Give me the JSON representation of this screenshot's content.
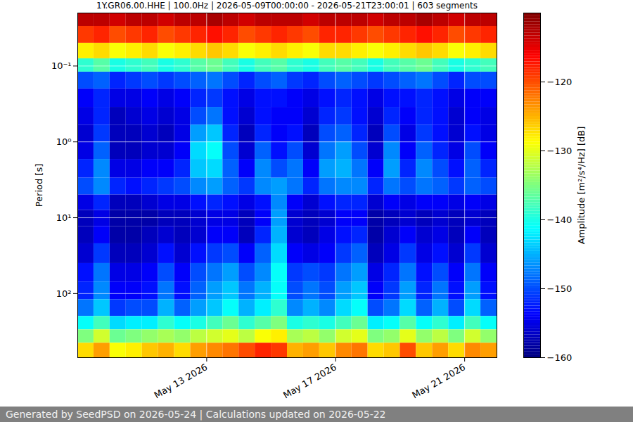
{
  "chart_data": {
    "type": "heatmap",
    "title": "1Y.GR06.00.HHE | 100.0Hz | 2026-05-09T00:00:00 - 2026-05-21T23:00:01 | 603 segments",
    "footer": "Generated by SeedPSD on 2026-05-24 | Calculations updated on 2026-05-22",
    "ylabel": "Period [s]",
    "colorbar_label": "Amplitude [m²/s⁴/Hz] [dB]",
    "log": "y",
    "grid": true,
    "x": [
      "2026-05-09T00:00Z",
      "2026-05-09T12:00Z",
      "2026-05-10T00:00Z",
      "2026-05-10T12:00Z",
      "2026-05-11T00:00Z",
      "2026-05-11T12:00Z",
      "2026-05-12T00:00Z",
      "2026-05-12T12:00Z",
      "2026-05-13T00:00Z",
      "2026-05-13T12:00Z",
      "2026-05-14T00:00Z",
      "2026-05-14T12:00Z",
      "2026-05-15T00:00Z",
      "2026-05-15T12:00Z",
      "2026-05-16T00:00Z",
      "2026-05-16T12:00Z",
      "2026-05-17T00:00Z",
      "2026-05-17T12:00Z",
      "2026-05-18T00:00Z",
      "2026-05-18T12:00Z",
      "2026-05-19T00:00Z",
      "2026-05-19T12:00Z",
      "2026-05-20T00:00Z",
      "2026-05-20T12:00Z",
      "2026-05-21T00:00Z",
      "2026-05-21T12:00Z"
    ],
    "xlim": [
      "2026-05-09T00:00Z",
      "2026-05-22T00:00Z"
    ],
    "xticks": [
      {
        "value": "2026-05-13T00:00Z",
        "label": "May 13 2026"
      },
      {
        "value": "2026-05-17T00:00Z",
        "label": "May 17 2026"
      },
      {
        "value": "2026-05-21T00:00Z",
        "label": "May 21 2026"
      }
    ],
    "period_edges": [
      0.02,
      0.03,
      0.05,
      0.08,
      0.12,
      0.2,
      0.35,
      0.6,
      1,
      1.7,
      3,
      5,
      8,
      13,
      22,
      40,
      70,
      120,
      200,
      300,
      450,
      700
    ],
    "ylim": [
      0.02,
      700
    ],
    "yticks": [
      {
        "value": 0.1,
        "label": "10⁻¹"
      },
      {
        "value": 1,
        "label": "10⁰"
      },
      {
        "value": 10,
        "label": "10¹"
      },
      {
        "value": 100,
        "label": "10²"
      }
    ],
    "cells": [
      [
        -113,
        -113,
        -114,
        -113,
        -113,
        -114,
        -113,
        -113,
        -112,
        -113,
        -114,
        -113,
        -113,
        -113,
        -114,
        -113,
        -113,
        -113,
        -114,
        -113,
        -113,
        -112,
        -113,
        -114,
        -113,
        -113
      ],
      [
        -119,
        -118,
        -120,
        -119,
        -118,
        -120,
        -119,
        -118,
        -117,
        -118,
        -120,
        -119,
        -118,
        -119,
        -120,
        -118,
        -118,
        -119,
        -120,
        -119,
        -118,
        -117,
        -118,
        -120,
        -119,
        -118
      ],
      [
        -128,
        -127,
        -129,
        -128,
        -127,
        -129,
        -128,
        -127,
        -126,
        -127,
        -129,
        -128,
        -127,
        -128,
        -129,
        -127,
        -127,
        -128,
        -129,
        -128,
        -127,
        -126,
        -127,
        -129,
        -128,
        -127
      ],
      [
        -139,
        -137,
        -140,
        -139,
        -138,
        -140,
        -139,
        -137,
        -136,
        -138,
        -140,
        -138,
        -137,
        -139,
        -140,
        -138,
        -137,
        -138,
        -140,
        -138,
        -137,
        -136,
        -138,
        -140,
        -139,
        -138
      ],
      [
        -150,
        -149,
        -152,
        -151,
        -150,
        -151,
        -150,
        -149,
        -148,
        -150,
        -152,
        -150,
        -149,
        -151,
        -152,
        -150,
        -149,
        -150,
        -151,
        -150,
        -149,
        -148,
        -150,
        -152,
        -150,
        -150
      ],
      [
        -154,
        -152,
        -155,
        -155,
        -154,
        -155,
        -154,
        -152,
        -151,
        -153,
        -155,
        -153,
        -153,
        -154,
        -155,
        -153,
        -152,
        -153,
        -155,
        -153,
        -153,
        -152,
        -153,
        -155,
        -154,
        -154
      ],
      [
        -155,
        -152,
        -157,
        -156,
        -155,
        -156,
        -155,
        -150,
        -148,
        -153,
        -156,
        -153,
        -154,
        -154,
        -156,
        -152,
        -151,
        -153,
        -156,
        -152,
        -154,
        -152,
        -153,
        -156,
        -154,
        -155
      ],
      [
        -156,
        -151,
        -157,
        -157,
        -156,
        -157,
        -155,
        -146,
        -144,
        -152,
        -157,
        -152,
        -154,
        -153,
        -157,
        -150,
        -149,
        -152,
        -157,
        -150,
        -155,
        -151,
        -153,
        -156,
        -153,
        -155
      ],
      [
        -155,
        -149,
        -157,
        -157,
        -156,
        -156,
        -154,
        -143,
        -141,
        -150,
        -156,
        -149,
        -153,
        -150,
        -156,
        -148,
        -146,
        -150,
        -156,
        -147,
        -154,
        -149,
        -152,
        -155,
        -150,
        -154
      ],
      [
        -152,
        -147,
        -155,
        -155,
        -154,
        -154,
        -152,
        -144,
        -143,
        -149,
        -154,
        -147,
        -150,
        -148,
        -154,
        -146,
        -145,
        -148,
        -154,
        -146,
        -152,
        -147,
        -150,
        -153,
        -149,
        -152
      ],
      [
        -150,
        -147,
        -152,
        -153,
        -152,
        -151,
        -150,
        -147,
        -146,
        -149,
        -151,
        -147,
        -146,
        -148,
        -152,
        -148,
        -147,
        -147,
        -152,
        -148,
        -150,
        -148,
        -149,
        -151,
        -149,
        -150
      ],
      [
        -155,
        -152,
        -157,
        -157,
        -156,
        -155,
        -155,
        -153,
        -152,
        -153,
        -155,
        -153,
        -147,
        -154,
        -156,
        -153,
        -152,
        -152,
        -156,
        -154,
        -155,
        -154,
        -154,
        -155,
        -154,
        -155
      ],
      [
        -157,
        -155,
        -158,
        -158,
        -158,
        -157,
        -157,
        -156,
        -155,
        -155,
        -157,
        -154,
        -146,
        -156,
        -157,
        -156,
        -154,
        -154,
        -158,
        -157,
        -156,
        -157,
        -156,
        -157,
        -156,
        -157
      ],
      [
        -157,
        -154,
        -158,
        -158,
        -157,
        -156,
        -157,
        -156,
        -154,
        -154,
        -157,
        -152,
        -145,
        -156,
        -157,
        -155,
        -153,
        -152,
        -158,
        -156,
        -154,
        -156,
        -155,
        -157,
        -154,
        -157
      ],
      [
        -156,
        -151,
        -157,
        -157,
        -156,
        -153,
        -156,
        -153,
        -151,
        -150,
        -154,
        -149,
        -143,
        -154,
        -155,
        -154,
        -151,
        -149,
        -157,
        -155,
        -151,
        -155,
        -153,
        -156,
        -151,
        -156
      ],
      [
        -153,
        -148,
        -155,
        -155,
        -154,
        -150,
        -154,
        -150,
        -148,
        -146,
        -150,
        -147,
        -141,
        -151,
        -150,
        -151,
        -148,
        -146,
        -155,
        -152,
        -148,
        -153,
        -150,
        -154,
        -148,
        -154
      ],
      [
        -152,
        -147,
        -154,
        -154,
        -153,
        -148,
        -153,
        -149,
        -146,
        -144,
        -148,
        -145,
        -141,
        -150,
        -148,
        -150,
        -146,
        -144,
        -154,
        -151,
        -146,
        -152,
        -148,
        -153,
        -146,
        -153
      ],
      [
        -148,
        -144,
        -151,
        -150,
        -150,
        -145,
        -149,
        -146,
        -144,
        -141,
        -145,
        -142,
        -139,
        -147,
        -145,
        -147,
        -143,
        -141,
        -150,
        -148,
        -143,
        -149,
        -145,
        -150,
        -143,
        -149
      ],
      [
        -141,
        -138,
        -143,
        -142,
        -142,
        -139,
        -141,
        -140,
        -138,
        -136,
        -139,
        -137,
        -135,
        -140,
        -139,
        -140,
        -138,
        -136,
        -142,
        -141,
        -137,
        -141,
        -139,
        -142,
        -138,
        -141
      ],
      [
        -135,
        -131,
        -136,
        -135,
        -134,
        -133,
        -134,
        -132,
        -131,
        -130,
        -132,
        -129,
        -128,
        -133,
        -132,
        -134,
        -131,
        -130,
        -135,
        -134,
        -130,
        -134,
        -132,
        -135,
        -131,
        -134
      ],
      [
        -127,
        -124,
        -129,
        -128,
        -126,
        -125,
        -127,
        -124,
        -123,
        -122,
        -120,
        -118,
        -119,
        -125,
        -124,
        -126,
        -123,
        -122,
        -127,
        -126,
        -120,
        -126,
        -124,
        -127,
        -123,
        -124
      ]
    ],
    "clim": [
      -160,
      -110
    ],
    "cticks": [
      {
        "value": -120,
        "label": "−120"
      },
      {
        "value": -130,
        "label": "−130"
      },
      {
        "value": -140,
        "label": "−140"
      },
      {
        "value": -150,
        "label": "−150"
      },
      {
        "value": -160,
        "label": "−160"
      }
    ]
  }
}
